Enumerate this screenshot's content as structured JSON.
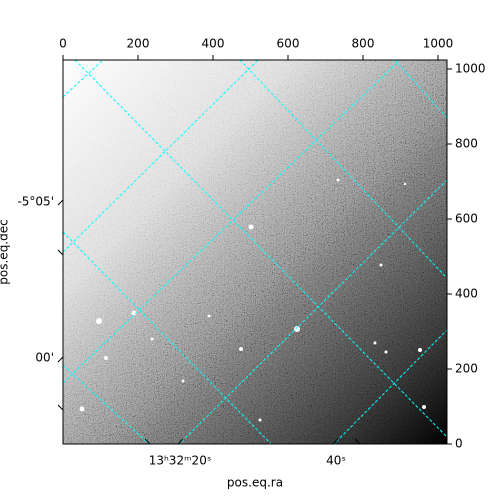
{
  "chart_data": {
    "type": "image",
    "xlabel": "pos.eq.ra",
    "ylabel": "pos.eq.dec",
    "xlim": [
      0,
      1024
    ],
    "ylim": [
      0,
      1024
    ],
    "xticks": [
      0,
      200,
      400,
      600,
      800,
      1000
    ],
    "yticks": [
      0,
      200,
      400,
      600,
      800,
      1000
    ],
    "ra_tick_labels": [
      "13ʰ32ᵐ20ˢ",
      "40ˢ"
    ],
    "dec_tick_labels": [
      "-5°05'",
      "00'"
    ],
    "grid_color": "#00ffff"
  }
}
